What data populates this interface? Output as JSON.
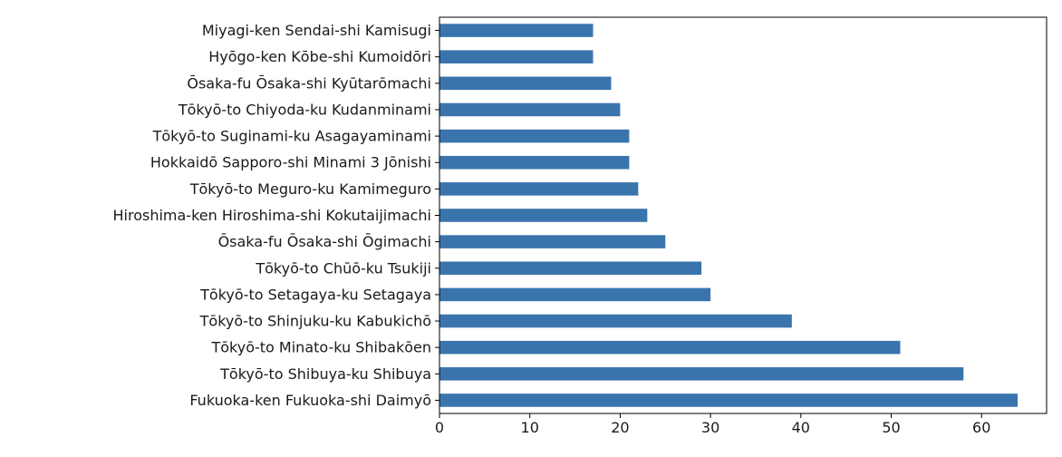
{
  "chart_data": {
    "type": "bar",
    "orientation": "horizontal",
    "title": "",
    "xlabel": "",
    "ylabel": "",
    "categories": [
      "Miyagi-ken Sendai-shi Kamisugi",
      "Hyōgo-ken Kōbe-shi Kumoidōri",
      "Ōsaka-fu Ōsaka-shi Kyūtarōmachi",
      "Tōkyō-to Chiyoda-ku Kudanminami",
      "Tōkyō-to Suginami-ku Asagayaminami",
      "Hokkaidō Sapporo-shi Minami 3 Jōnishi",
      "Tōkyō-to Meguro-ku Kamimeguro",
      "Hiroshima-ken Hiroshima-shi Kokutaijimachi",
      "Ōsaka-fu Ōsaka-shi Ōgimachi",
      "Tōkyō-to Chūō-ku Tsukiji",
      "Tōkyō-to Setagaya-ku Setagaya",
      "Tōkyō-to Shinjuku-ku Kabukichō",
      "Tōkyō-to Minato-ku Shibakōen",
      "Tōkyō-to Shibuya-ku Shibuya",
      "Fukuoka-ken Fukuoka-shi Daimyō"
    ],
    "values": [
      17,
      17,
      19,
      20,
      21,
      21,
      22,
      23,
      25,
      29,
      30,
      39,
      51,
      58,
      64
    ],
    "xlim": [
      0,
      67.2
    ],
    "xticks": [
      0,
      10,
      20,
      30,
      40,
      50,
      60
    ],
    "grid": false,
    "colors": {
      "bar": "#3a74ad",
      "axis": "#000000"
    }
  }
}
